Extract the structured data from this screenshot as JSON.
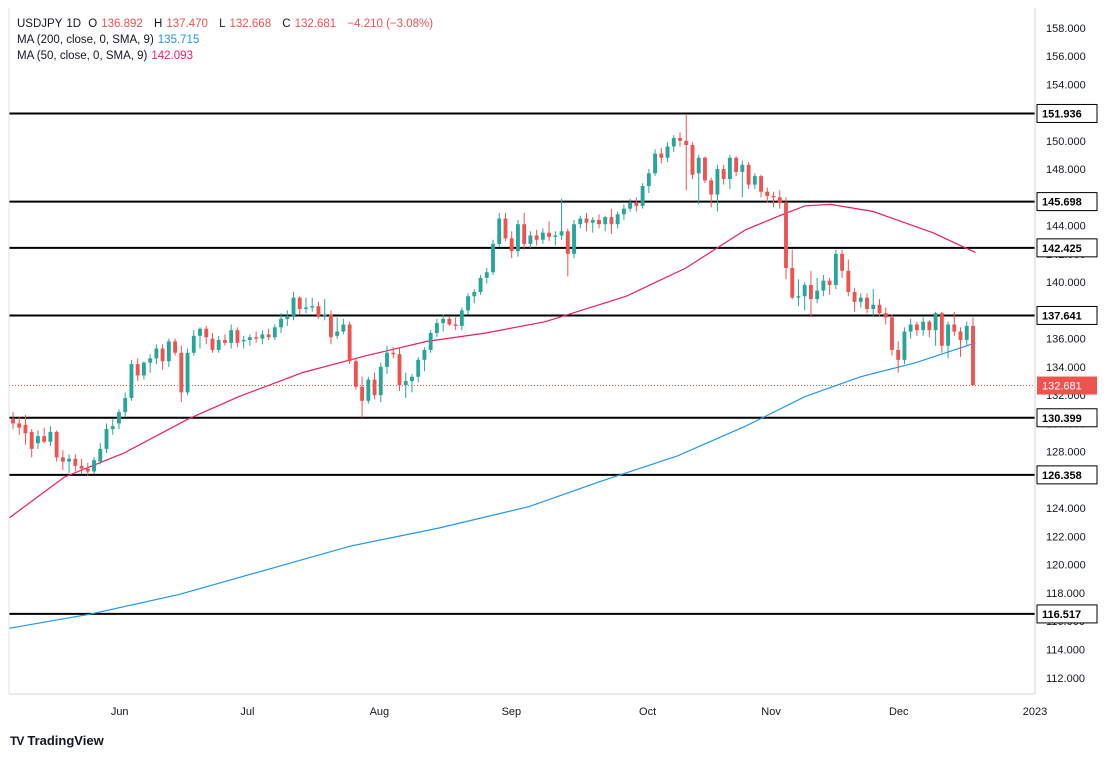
{
  "legend": {
    "symbol": "USDJPY",
    "interval": "1D",
    "o_label": "O",
    "open": "136.892",
    "h_label": "H",
    "high": "137.470",
    "l_label": "L",
    "low": "132.668",
    "c_label": "C",
    "close": "132.681",
    "change": "−4.210 (−3.08%)",
    "ma200_label": "MA (200, close, 0, SMA, 9)",
    "ma200_value": "135.715",
    "ma50_label": "MA (50, close, 0, SMA, 9)",
    "ma50_value": "142.093"
  },
  "brand": {
    "logo": "TV",
    "name": "TradingView"
  },
  "colors": {
    "up": "#26a69a",
    "down": "#ef5350",
    "ma200": "#2196f3",
    "ma50": "#e91e63",
    "hline": "#000000"
  },
  "chart_data": {
    "type": "candlestick",
    "title": "USDJPY, 1D",
    "y_ticks": [
      112,
      114,
      116,
      118,
      120,
      122,
      124,
      126,
      128,
      130,
      132,
      134,
      136,
      138,
      140,
      142,
      144,
      146,
      148,
      150,
      152,
      154,
      156,
      158
    ],
    "y_range": [
      110.85,
      159.4
    ],
    "x_tick_labels": [
      {
        "label": "Jun",
        "date": "2022-06-01"
      },
      {
        "label": "Jul",
        "date": "2022-07-01"
      },
      {
        "label": "Aug",
        "date": "2022-08-01"
      },
      {
        "label": "Sep",
        "date": "2022-09-01"
      },
      {
        "label": "Oct",
        "date": "2022-10-03"
      },
      {
        "label": "Nov",
        "date": "2022-11-01"
      },
      {
        "label": "Dec",
        "date": "2022-12-01"
      },
      {
        "label": "2023",
        "date": "2023-01-02"
      }
    ],
    "x_range": [
      "2022-05-06",
      "2023-01-02"
    ],
    "horizontal_levels": [
      151.936,
      145.698,
      142.425,
      137.641,
      130.399,
      126.358,
      116.517
    ],
    "last_price": 132.681,
    "candles": [
      [
        130.3,
        130.8,
        129.6,
        130.0
      ],
      [
        130.0,
        130.5,
        129.2,
        129.7
      ],
      [
        129.9,
        130.6,
        128.5,
        129.3
      ],
      [
        129.4,
        129.6,
        127.6,
        128.2
      ],
      [
        128.6,
        129.5,
        128.2,
        129.1
      ],
      [
        129.1,
        129.7,
        128.6,
        128.7
      ],
      [
        128.7,
        129.8,
        128.4,
        129.4
      ],
      [
        129.4,
        129.5,
        127.3,
        127.6
      ],
      [
        127.6,
        128.1,
        126.7,
        127.3
      ],
      [
        127.3,
        127.8,
        126.5,
        127.5
      ],
      [
        127.5,
        127.8,
        126.6,
        127.0
      ],
      [
        127.0,
        127.5,
        126.4,
        126.8
      ],
      [
        126.8,
        127.2,
        126.3,
        126.6
      ],
      [
        126.6,
        127.6,
        126.4,
        127.4
      ],
      [
        127.3,
        128.6,
        127.1,
        128.2
      ],
      [
        128.2,
        130.0,
        127.9,
        129.6
      ],
      [
        129.6,
        130.3,
        129.2,
        129.8
      ],
      [
        130.0,
        131.0,
        129.6,
        130.8
      ],
      [
        130.8,
        132.2,
        130.5,
        131.8
      ],
      [
        131.8,
        134.5,
        131.6,
        134.2
      ],
      [
        134.2,
        134.6,
        133.0,
        133.4
      ],
      [
        133.4,
        134.4,
        133.1,
        134.3
      ],
      [
        134.3,
        134.9,
        133.6,
        134.6
      ],
      [
        134.6,
        135.6,
        134.2,
        135.3
      ],
      [
        135.3,
        135.6,
        133.8,
        134.4
      ],
      [
        134.4,
        136.0,
        134.0,
        135.8
      ],
      [
        135.8,
        136.0,
        134.8,
        135.0
      ],
      [
        135.0,
        135.5,
        131.5,
        132.2
      ],
      [
        132.2,
        135.3,
        132.0,
        135.0
      ],
      [
        135.0,
        136.6,
        134.8,
        136.2
      ],
      [
        136.2,
        136.8,
        135.3,
        136.7
      ],
      [
        136.7,
        136.9,
        135.6,
        136.1
      ],
      [
        136.0,
        136.4,
        135.0,
        135.2
      ],
      [
        135.2,
        136.2,
        135.0,
        135.9
      ],
      [
        135.9,
        136.3,
        135.5,
        135.7
      ],
      [
        135.7,
        137.0,
        135.3,
        136.6
      ],
      [
        136.6,
        136.8,
        135.4,
        135.7
      ],
      [
        135.8,
        136.2,
        135.3,
        135.9
      ],
      [
        135.9,
        136.3,
        135.5,
        136.1
      ],
      [
        136.1,
        136.5,
        135.7,
        136.0
      ],
      [
        136.0,
        136.6,
        135.6,
        136.3
      ],
      [
        136.3,
        136.7,
        135.9,
        136.1
      ],
      [
        136.1,
        137.0,
        135.9,
        136.8
      ],
      [
        136.8,
        137.8,
        136.4,
        137.4
      ],
      [
        137.4,
        138.0,
        136.9,
        137.6
      ],
      [
        137.6,
        139.3,
        137.3,
        138.9
      ],
      [
        138.9,
        139.0,
        137.7,
        138.1
      ],
      [
        138.1,
        138.9,
        137.8,
        138.2
      ],
      [
        138.2,
        138.9,
        137.9,
        138.3
      ],
      [
        138.3,
        138.6,
        137.4,
        137.6
      ],
      [
        137.6,
        138.8,
        137.3,
        137.7
      ],
      [
        137.7,
        138.0,
        135.6,
        136.1
      ],
      [
        136.2,
        137.5,
        136.0,
        136.5
      ],
      [
        136.5,
        137.4,
        136.3,
        137.0
      ],
      [
        137.0,
        137.2,
        134.2,
        134.4
      ],
      [
        134.4,
        134.6,
        132.4,
        132.6
      ],
      [
        132.6,
        133.3,
        130.4,
        131.6
      ],
      [
        131.6,
        133.3,
        131.4,
        133.1
      ],
      [
        133.1,
        133.6,
        131.7,
        132.0
      ],
      [
        132.0,
        134.3,
        131.5,
        134.0
      ],
      [
        134.0,
        135.5,
        133.5,
        135.0
      ],
      [
        135.0,
        135.4,
        134.6,
        134.9
      ],
      [
        134.9,
        135.4,
        132.3,
        132.7
      ],
      [
        132.7,
        133.6,
        131.8,
        133.0
      ],
      [
        133.0,
        133.5,
        132.2,
        133.3
      ],
      [
        133.3,
        134.7,
        132.9,
        134.5
      ],
      [
        134.5,
        135.4,
        133.7,
        135.2
      ],
      [
        135.2,
        136.6,
        135.0,
        136.4
      ],
      [
        136.4,
        137.4,
        136.1,
        137.1
      ],
      [
        137.1,
        137.7,
        136.5,
        137.4
      ],
      [
        137.4,
        137.6,
        136.9,
        137.0
      ],
      [
        137.0,
        137.5,
        136.6,
        136.9
      ],
      [
        136.9,
        138.2,
        136.6,
        138.0
      ],
      [
        138.0,
        139.2,
        137.7,
        139.0
      ],
      [
        139.0,
        139.5,
        138.5,
        139.3
      ],
      [
        139.3,
        140.5,
        139.1,
        140.3
      ],
      [
        140.3,
        141.0,
        139.9,
        140.7
      ],
      [
        140.7,
        143.0,
        140.5,
        142.7
      ],
      [
        142.7,
        144.9,
        142.5,
        144.5
      ],
      [
        144.5,
        144.9,
        142.9,
        143.1
      ],
      [
        143.1,
        143.6,
        141.7,
        142.2
      ],
      [
        142.2,
        144.4,
        141.8,
        144.1
      ],
      [
        144.1,
        144.9,
        142.3,
        142.7
      ],
      [
        142.7,
        143.6,
        142.4,
        143.3
      ],
      [
        143.3,
        143.7,
        142.6,
        143.0
      ],
      [
        143.0,
        143.8,
        142.7,
        143.5
      ],
      [
        143.5,
        144.3,
        142.9,
        143.2
      ],
      [
        143.2,
        143.6,
        142.6,
        143.3
      ],
      [
        143.3,
        145.9,
        143.0,
        143.6
      ],
      [
        143.6,
        143.8,
        140.4,
        142.0
      ],
      [
        142.0,
        144.4,
        141.7,
        144.1
      ],
      [
        144.1,
        144.7,
        143.8,
        144.5
      ],
      [
        144.5,
        144.9,
        143.6,
        144.2
      ],
      [
        144.2,
        144.6,
        143.5,
        144.4
      ],
      [
        144.4,
        144.8,
        143.8,
        144.1
      ],
      [
        144.1,
        144.7,
        143.6,
        144.6
      ],
      [
        144.6,
        145.2,
        143.4,
        144.1
      ],
      [
        144.1,
        145.0,
        143.8,
        144.8
      ],
      [
        144.8,
        145.5,
        144.4,
        145.2
      ],
      [
        145.2,
        145.9,
        145.0,
        145.6
      ],
      [
        145.6,
        146.0,
        145.0,
        145.4
      ],
      [
        145.4,
        147.0,
        145.2,
        146.8
      ],
      [
        146.8,
        148.0,
        146.3,
        147.7
      ],
      [
        147.7,
        149.4,
        147.5,
        149.1
      ],
      [
        149.1,
        149.5,
        148.4,
        148.8
      ],
      [
        148.8,
        149.9,
        148.5,
        149.6
      ],
      [
        149.6,
        150.4,
        149.2,
        150.2
      ],
      [
        150.2,
        150.6,
        149.6,
        150.0
      ],
      [
        150.0,
        151.9,
        146.5,
        149.7
      ],
      [
        149.7,
        149.9,
        147.3,
        147.6
      ],
      [
        147.7,
        149.0,
        145.5,
        148.8
      ],
      [
        148.8,
        148.9,
        147.0,
        147.2
      ],
      [
        147.2,
        147.4,
        145.3,
        146.2
      ],
      [
        146.2,
        148.3,
        145.0,
        148.0
      ],
      [
        148.0,
        148.3,
        146.9,
        147.3
      ],
      [
        147.3,
        149.0,
        146.6,
        148.8
      ],
      [
        148.8,
        148.9,
        147.5,
        147.8
      ],
      [
        147.8,
        148.6,
        146.0,
        148.3
      ],
      [
        148.3,
        148.5,
        146.6,
        146.9
      ],
      [
        146.9,
        147.7,
        146.6,
        147.5
      ],
      [
        147.5,
        147.6,
        146.0,
        146.4
      ],
      [
        146.4,
        146.7,
        145.6,
        146.1
      ],
      [
        146.1,
        146.4,
        145.3,
        146.0
      ],
      [
        146.0,
        146.5,
        145.2,
        145.6
      ],
      [
        145.6,
        146.0,
        140.2,
        141.0
      ],
      [
        141.0,
        142.3,
        138.8,
        138.9
      ],
      [
        138.9,
        140.2,
        138.3,
        139.0
      ],
      [
        139.0,
        140.0,
        138.0,
        139.8
      ],
      [
        139.8,
        140.8,
        137.6,
        138.8
      ],
      [
        138.8,
        140.3,
        138.5,
        139.4
      ],
      [
        139.4,
        140.5,
        139.0,
        140.1
      ],
      [
        140.1,
        140.3,
        139.1,
        139.8
      ],
      [
        139.8,
        142.3,
        139.5,
        142.0
      ],
      [
        142.0,
        142.3,
        140.3,
        140.8
      ],
      [
        140.8,
        141.6,
        139.0,
        139.3
      ],
      [
        139.3,
        139.6,
        137.9,
        138.6
      ],
      [
        138.6,
        139.2,
        138.2,
        138.9
      ],
      [
        138.9,
        139.2,
        137.8,
        138.1
      ],
      [
        138.1,
        139.5,
        137.6,
        138.4
      ],
      [
        138.4,
        138.8,
        137.6,
        137.8
      ],
      [
        137.8,
        138.2,
        137.0,
        137.5
      ],
      [
        137.5,
        137.7,
        134.8,
        135.2
      ],
      [
        135.2,
        135.8,
        133.6,
        134.5
      ],
      [
        134.5,
        136.8,
        134.2,
        136.5
      ],
      [
        136.5,
        137.4,
        136.0,
        137.0
      ],
      [
        137.0,
        137.2,
        136.2,
        136.6
      ],
      [
        136.6,
        137.5,
        136.2,
        137.2
      ],
      [
        137.2,
        137.3,
        136.1,
        136.6
      ],
      [
        136.6,
        137.9,
        135.5,
        137.8
      ],
      [
        137.8,
        137.9,
        135.0,
        135.5
      ],
      [
        135.5,
        137.2,
        134.6,
        137.0
      ],
      [
        137.0,
        137.9,
        136.2,
        136.5
      ],
      [
        136.5,
        136.8,
        134.7,
        135.9
      ],
      [
        135.9,
        137.2,
        135.5,
        136.9
      ],
      [
        136.9,
        137.5,
        132.7,
        132.7
      ]
    ],
    "series": [
      {
        "name": "MA (200, close, 0, SMA, 9)",
        "x": [
          "2022-05-06",
          "2022-05-25",
          "2022-06-15",
          "2022-07-05",
          "2022-07-25",
          "2022-08-15",
          "2022-09-05",
          "2022-09-22",
          "2022-10-10",
          "2022-10-26",
          "2022-11-09",
          "2022-11-22",
          "2022-12-05",
          "2022-12-19"
        ],
        "values": [
          115.5,
          116.5,
          117.9,
          119.6,
          121.3,
          122.6,
          124.1,
          125.9,
          127.7,
          129.8,
          131.9,
          133.3,
          134.3,
          135.7
        ]
      },
      {
        "name": "MA (50, close, 0, SMA, 9)",
        "x": [
          "2022-05-06",
          "2022-05-19",
          "2022-06-02",
          "2022-06-17",
          "2022-06-29",
          "2022-07-14",
          "2022-07-29",
          "2022-08-12",
          "2022-08-26",
          "2022-09-09",
          "2022-09-28",
          "2022-10-12",
          "2022-10-26",
          "2022-11-03",
          "2022-11-09",
          "2022-11-15",
          "2022-11-25",
          "2022-12-09",
          "2022-12-19"
        ],
        "values": [
          123.3,
          126.2,
          127.9,
          130.3,
          131.9,
          133.6,
          134.8,
          135.8,
          136.4,
          137.2,
          139.0,
          141.0,
          143.7,
          144.7,
          145.4,
          145.5,
          145.0,
          143.5,
          142.1
        ]
      }
    ]
  }
}
